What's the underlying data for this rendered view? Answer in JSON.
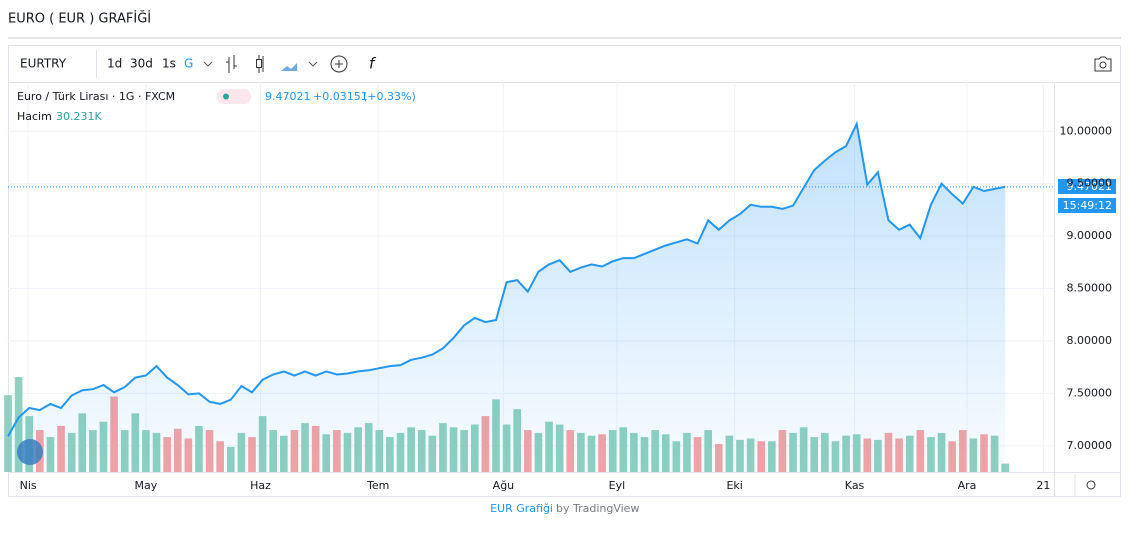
{
  "header": {
    "title": "EURO ( EUR ) GRAFİĞİ"
  },
  "toolbar": {
    "symbol": "EURTRY",
    "intervals": [
      "1d",
      "30d",
      "1s",
      "G"
    ]
  },
  "chart_data": {
    "type": "line",
    "series": [
      {
        "name": "Euro / Türk Lirası · 1G · FXCM",
        "color": "#2196f3",
        "values": [
          7.09,
          7.27,
          7.36,
          7.34,
          7.4,
          7.36,
          7.48,
          7.53,
          7.54,
          7.58,
          7.51,
          7.56,
          7.65,
          7.67,
          7.76,
          7.65,
          7.58,
          7.49,
          7.5,
          7.42,
          7.4,
          7.44,
          7.57,
          7.51,
          7.63,
          7.68,
          7.71,
          7.67,
          7.71,
          7.67,
          7.71,
          7.68,
          7.69,
          7.71,
          7.72,
          7.74,
          7.76,
          7.77,
          7.82,
          7.84,
          7.87,
          7.93,
          8.03,
          8.15,
          8.22,
          8.18,
          8.2,
          8.56,
          8.58,
          8.47,
          8.66,
          8.73,
          8.77,
          8.66,
          8.7,
          8.73,
          8.71,
          8.76,
          8.79,
          8.79,
          8.83,
          8.87,
          8.91,
          8.94,
          8.97,
          8.93,
          9.15,
          9.06,
          9.15,
          9.21,
          9.3,
          9.28,
          9.28,
          9.26,
          9.29,
          9.46,
          9.63,
          9.72,
          9.8,
          9.86,
          10.07,
          9.49,
          9.61,
          9.15,
          9.06,
          9.11,
          8.98,
          9.3,
          9.5,
          9.4,
          9.31,
          9.47,
          9.43,
          9.45,
          9.47
        ]
      }
    ],
    "last": {
      "price": {
        "value": 9.47021,
        "label": "9.47021"
      },
      "change": "+0.03151",
      "percent": "(+0.33%)",
      "time": "15:49:12"
    },
    "volume": {
      "name": "Hacim",
      "last": "30.231K",
      "up_color": "#8fd1c0",
      "down_color": "#f5a3a3",
      "values": [
        55,
        68,
        40,
        30,
        25,
        33,
        28,
        42,
        30,
        36,
        54,
        30,
        42,
        30,
        28,
        25,
        31,
        24,
        33,
        30,
        22,
        18,
        28,
        25,
        40,
        30,
        26,
        30,
        35,
        33,
        27,
        30,
        28,
        32,
        35,
        30,
        25,
        28,
        32,
        30,
        26,
        35,
        32,
        30,
        34,
        40,
        52,
        34,
        45,
        30,
        28,
        36,
        34,
        30,
        28,
        26,
        27,
        30,
        32,
        28,
        25,
        30,
        27,
        22,
        28,
        25,
        30,
        20,
        26,
        23,
        24,
        22,
        22,
        30,
        28,
        32,
        25,
        28,
        22,
        26,
        27,
        24,
        23,
        28,
        24,
        26,
        30,
        25,
        28,
        22,
        30,
        24,
        27,
        26,
        6
      ]
    },
    "xlim": [
      0,
      98.6
    ],
    "xticks": [
      {
        "value": 1.9,
        "label": "Nis"
      },
      {
        "value": 13.0,
        "label": "May"
      },
      {
        "value": 23.8,
        "label": "Haz"
      },
      {
        "value": 34.9,
        "label": "Tem"
      },
      {
        "value": 46.7,
        "label": "Ağu"
      },
      {
        "value": 57.4,
        "label": "Eyl"
      },
      {
        "value": 68.5,
        "label": "Eki"
      },
      {
        "value": 79.8,
        "label": "Kas"
      },
      {
        "value": 90.4,
        "label": "Ara"
      },
      {
        "value": 97.6,
        "label": "21"
      }
    ],
    "ylim": [
      6.75,
      10.47
    ],
    "yticks": [
      {
        "value": 7,
        "label": "7.00000"
      },
      {
        "value": 7.5,
        "label": "7.50000"
      },
      {
        "value": 8,
        "label": "8.00000"
      },
      {
        "value": 8.5,
        "label": "8.50000"
      },
      {
        "value": 9,
        "label": "9.00000"
      },
      {
        "value": 9.5,
        "label": "9.50000"
      },
      {
        "value": 10,
        "label": "10.00000"
      }
    ],
    "grid": true
  },
  "footer": {
    "link": "EUR Grafiği",
    "by": "by TradingView"
  }
}
